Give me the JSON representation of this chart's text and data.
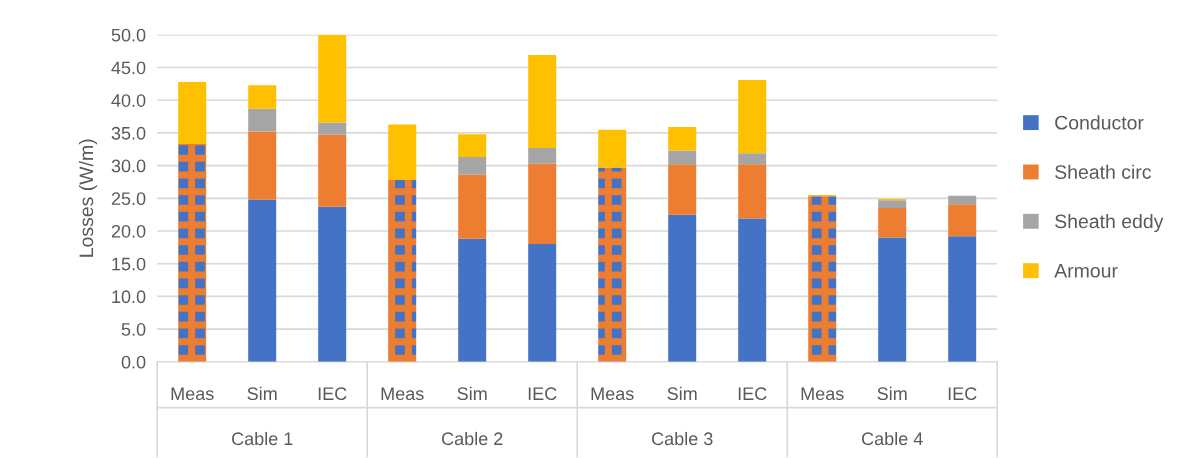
{
  "chart_data": {
    "type": "bar",
    "stacked": true,
    "ylabel": "Losses (W/m)",
    "categories": [
      "Meas",
      "Sim",
      "IEC",
      "Meas",
      "Sim",
      "IEC",
      "Meas",
      "Sim",
      "IEC",
      "Meas",
      "Sim",
      "IEC"
    ],
    "annotations": [
      "Cable 1",
      "Cable 2",
      "Cable 3",
      "Cable 4"
    ],
    "series": [
      {
        "color": "#4472c4",
        "values": [
          33.3,
          null,
          null,
          27.8,
          null,
          null,
          29.7,
          null,
          null,
          25.3,
          null,
          null
        ]
      },
      {
        "name": "Conductor",
        "color": "#4472c4",
        "values": [
          null,
          24.8,
          23.7,
          null,
          18.8,
          18.0,
          null,
          22.5,
          21.9,
          null,
          19.0,
          19.2
        ]
      },
      {
        "name": "Sheath circ",
        "color": "#ed7d31",
        "values": [
          null,
          10.4,
          11.0,
          null,
          9.8,
          12.3,
          null,
          7.7,
          8.3,
          null,
          4.5,
          4.9
        ]
      },
      {
        "name": "Sheath eddy",
        "color": "#a5a5a5",
        "values": [
          null,
          3.5,
          1.9,
          null,
          2.7,
          2.4,
          null,
          2.1,
          1.7,
          null,
          1.2,
          1.3
        ]
      },
      {
        "name": "Armour",
        "color": "#ffc000",
        "values": [
          9.5,
          3.6,
          13.4,
          8.5,
          3.5,
          14.2,
          5.8,
          3.6,
          11.2,
          0.2,
          0.2,
          0.0
        ]
      }
    ],
    "ylim": [
      0,
      50
    ],
    "yticks": [
      {
        "value": 0,
        "label": "0.0"
      },
      {
        "value": 5,
        "label": "5.0"
      },
      {
        "value": 10,
        "label": "10.0"
      },
      {
        "value": 15,
        "label": "15.0"
      },
      {
        "value": 20,
        "label": "20.0"
      },
      {
        "value": 25,
        "label": "25.0"
      },
      {
        "value": 30,
        "label": "30.0"
      },
      {
        "value": 35,
        "label": "35.0"
      },
      {
        "value": 40,
        "label": "40.0"
      },
      {
        "value": 45,
        "label": "45.0"
      },
      {
        "value": 50,
        "label": "50.0"
      }
    ],
    "grid": "y",
    "legend": "right"
  }
}
